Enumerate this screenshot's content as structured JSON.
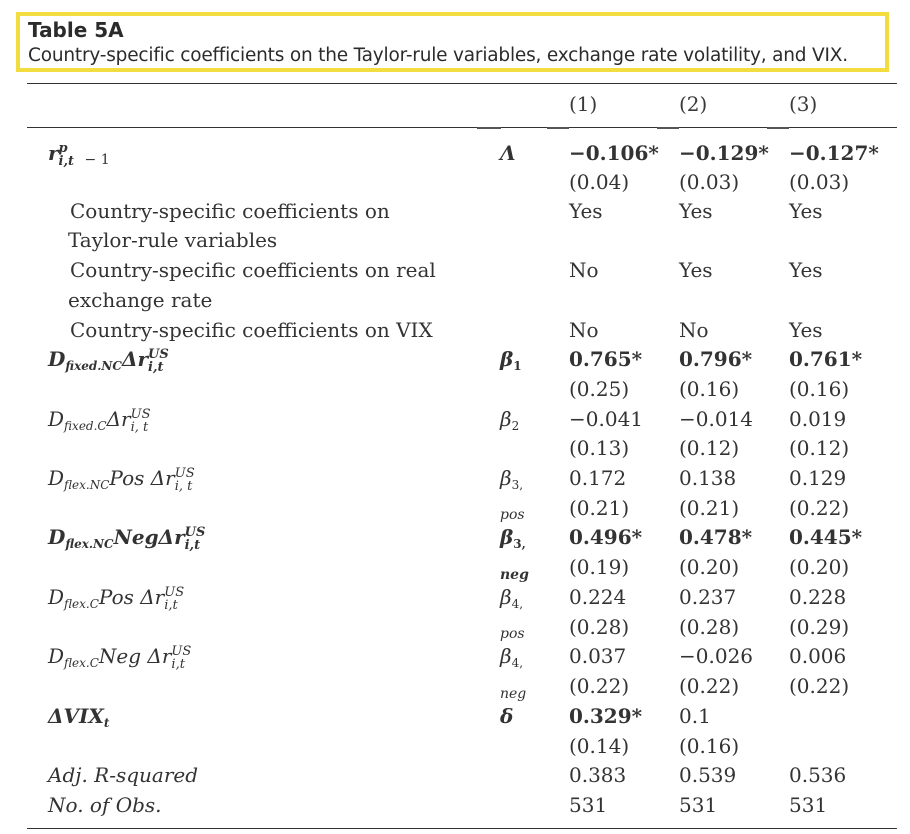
{
  "caption": {
    "title": "Table 5A",
    "text": "Country-specific coefficients on the Taylor-rule variables, exchange rate volatility, and VIX."
  },
  "columns": [
    "(1)",
    "(2)",
    "(3)"
  ],
  "rows": {
    "r_lag": {
      "var_base": "r",
      "var_sup": "p",
      "var_sub": "i,t",
      "var_tail": "− 1",
      "param": "Λ",
      "coef": [
        "−0.106*",
        "−0.129*",
        "−0.127*"
      ],
      "se": [
        "(0.04)",
        "(0.03)",
        "(0.03)"
      ]
    },
    "taylor": {
      "label_1": "Country-specific coefficients on",
      "label_2": "Taylor-rule variables",
      "vals": [
        "Yes",
        "Yes",
        "Yes"
      ]
    },
    "rer": {
      "label_1": "Country-specific coefficients on real",
      "label_2": "exchange rate",
      "vals": [
        "No",
        "Yes",
        "Yes"
      ]
    },
    "vix_cs": {
      "label": "Country-specific coefficients on VIX",
      "vals": [
        "No",
        "No",
        "Yes"
      ]
    },
    "b1": {
      "d": "D",
      "d_sub": "fixed.NC",
      "var": "Δr",
      "sup": "US",
      "sub": "i,t",
      "param": "β",
      "param_sub": "1",
      "coef": [
        "0.765*",
        "0.796*",
        "0.761*"
      ],
      "se": [
        "(0.25)",
        "(0.16)",
        "(0.16)"
      ]
    },
    "b2": {
      "d": "D",
      "d_sub": "fixed.C",
      "var": "Δr",
      "sup": "US",
      "sub": "i, t",
      "param": "β",
      "param_sub": "2",
      "coef": [
        "−0.041",
        "−0.014",
        "0.019"
      ],
      "se": [
        "(0.13)",
        "(0.12)",
        "(0.12)"
      ]
    },
    "b3pos": {
      "d": "D",
      "d_sub": "flex.NC",
      "mid": "Pos Δr",
      "sup": "US",
      "sub": "i, t",
      "param": "β",
      "param_sub": "3,",
      "param_tail": "pos",
      "coef": [
        "0.172",
        "0.138",
        "0.129"
      ],
      "se": [
        "(0.21)",
        "(0.21)",
        "(0.22)"
      ]
    },
    "b3neg": {
      "d": "D",
      "d_sub": "flex.NC",
      "mid": "NegΔr",
      "sup": "US",
      "sub": "i,t",
      "param": "β",
      "param_sub": "3,",
      "param_tail": "neg",
      "coef": [
        "0.496*",
        "0.478*",
        "0.445*"
      ],
      "se": [
        "(0.19)",
        "(0.20)",
        "(0.20)"
      ]
    },
    "b4pos": {
      "d": "D",
      "d_sub": "flex.C",
      "mid": "Pos Δr",
      "sup": "US",
      "sub": "i,t",
      "param": "β",
      "param_sub": "4,",
      "param_tail": "pos",
      "coef": [
        "0.224",
        "0.237",
        "0.228"
      ],
      "se": [
        "(0.28)",
        "(0.28)",
        "(0.29)"
      ]
    },
    "b4neg": {
      "d": "D",
      "d_sub": "flex.C",
      "mid": "Neg Δr",
      "sup": "US",
      "sub": "i,t",
      "param": "β",
      "param_sub": "4,",
      "param_tail": "neg",
      "coef": [
        "0.037",
        "−0.026",
        "0.006"
      ],
      "se": [
        "(0.22)",
        "(0.22)",
        "(0.22)"
      ]
    },
    "dvix": {
      "var": "ΔVIX",
      "sub": "t",
      "param": "δ",
      "coef": [
        "0.329*",
        "0.1",
        ""
      ],
      "se": [
        "(0.14)",
        "(0.16)",
        ""
      ]
    },
    "r2": {
      "label": "Adj. R-squared",
      "vals": [
        "0.383",
        "0.539",
        "0.536"
      ]
    },
    "obs": {
      "label": "No. of Obs.",
      "vals": [
        "531",
        "531",
        "531"
      ]
    }
  }
}
